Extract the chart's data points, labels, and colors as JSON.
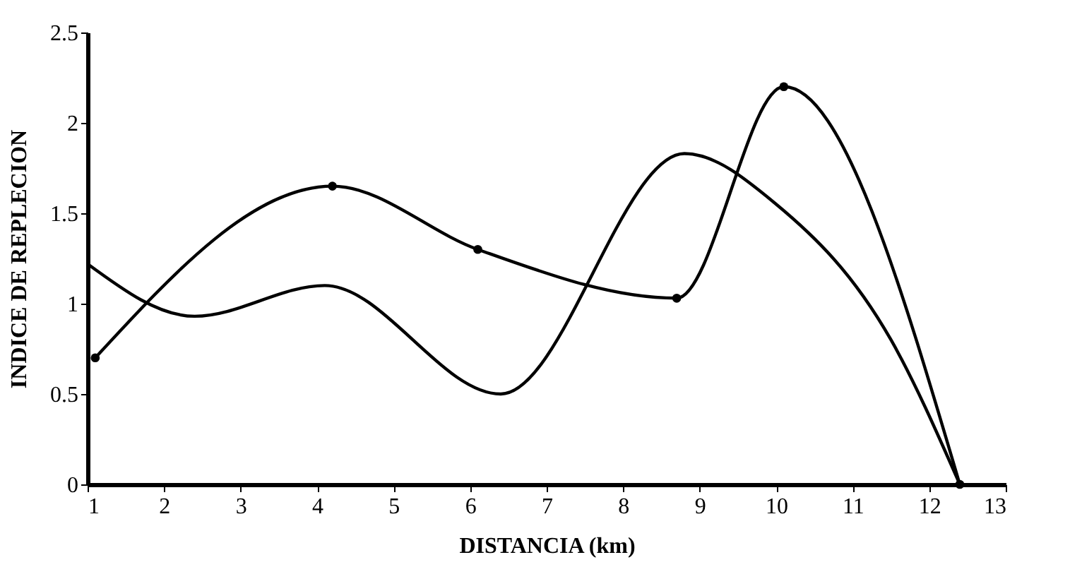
{
  "chart_data": {
    "type": "line",
    "xlabel": "DISTANCIA (km)",
    "ylabel": "INDICE DE REPLECION",
    "xlim": [
      1,
      13
    ],
    "xticks": [
      1,
      2,
      3,
      4,
      5,
      6,
      7,
      8,
      9,
      10,
      11,
      12,
      13
    ],
    "ylim": [
      0,
      2.5
    ],
    "yticks": [
      0,
      0.5,
      1,
      1.5,
      2,
      2.5
    ],
    "grid": false,
    "line_style": "solid",
    "series": [
      {
        "color": "#000000",
        "marker": "circle",
        "x": [
          1.1,
          4.2,
          6.1,
          8.7,
          10.1,
          12.4
        ],
        "values": [
          0.7,
          1.65,
          1.3,
          1.03,
          2.2,
          0
        ]
      },
      {
        "color": "#000000",
        "marker": "none",
        "x": [
          1.0,
          2.4,
          4.1,
          6.4,
          8.8,
          10.0,
          11.5,
          12.4
        ],
        "values": [
          1.22,
          0.93,
          1.1,
          0.5,
          1.83,
          1.55,
          0.8,
          0
        ]
      }
    ]
  }
}
